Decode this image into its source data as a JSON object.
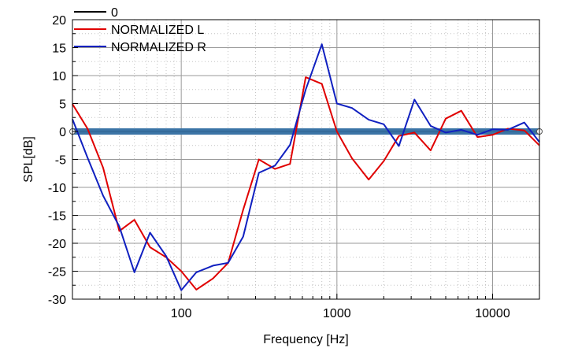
{
  "chart_data": {
    "type": "line",
    "x_scale": "log",
    "xlabel": "Frequency [Hz]",
    "ylabel": "SPL[dB]",
    "xlim": [
      20,
      20000
    ],
    "ylim": [
      -30,
      20
    ],
    "x_tick_labels": [
      "100",
      "1000",
      "10000"
    ],
    "x_tick_values": [
      100,
      1000,
      10000
    ],
    "y_ticks": [
      -30,
      -25,
      -20,
      -15,
      -10,
      -5,
      0,
      5,
      10,
      15,
      20
    ],
    "grid": true,
    "legend_position": "top-left",
    "series": [
      {
        "name": "0",
        "color": "#000000",
        "x": [
          20,
          20000
        ],
        "y": [
          0,
          0
        ]
      },
      {
        "name": "NORMALIZED L",
        "color": "#e00000",
        "x": [
          20,
          25,
          31.5,
          40,
          50,
          63,
          80,
          100,
          125,
          160,
          200,
          250,
          315,
          400,
          500,
          630,
          800,
          1000,
          1250,
          1600,
          2000,
          2500,
          3150,
          4000,
          5000,
          6300,
          8000,
          10000,
          12500,
          16000,
          20000
        ],
        "y": [
          4.9,
          0.5,
          -6.5,
          -17.8,
          -15.8,
          -20.7,
          -22.5,
          -25,
          -28.3,
          -26.3,
          -23.5,
          -14,
          -5,
          -6.7,
          -5.8,
          9.7,
          8.5,
          0,
          -4.8,
          -8.6,
          -5.3,
          -0.8,
          -0.2,
          -3.4,
          2.3,
          3.7,
          -1,
          -0.6,
          0.5,
          0.2,
          -2.5
        ]
      },
      {
        "name": "NORMALIZED R",
        "color": "#1020c0",
        "x": [
          20,
          25,
          31.5,
          40,
          50,
          63,
          80,
          100,
          125,
          160,
          200,
          250,
          315,
          400,
          500,
          630,
          800,
          1000,
          1250,
          1600,
          2000,
          2500,
          3150,
          4000,
          5000,
          6300,
          8000,
          10000,
          12500,
          16000,
          20000
        ],
        "y": [
          2.2,
          -4.7,
          -11.5,
          -17,
          -25.2,
          -18.1,
          -22.3,
          -28.4,
          -25.2,
          -24,
          -23.5,
          -18.8,
          -7.4,
          -6.1,
          -2.4,
          7.5,
          15.6,
          5,
          4.2,
          2.1,
          1.3,
          -2.6,
          5.7,
          1,
          -0.2,
          0.3,
          -0.6,
          0.4,
          0.3,
          1.6,
          -1.9
        ]
      }
    ]
  }
}
